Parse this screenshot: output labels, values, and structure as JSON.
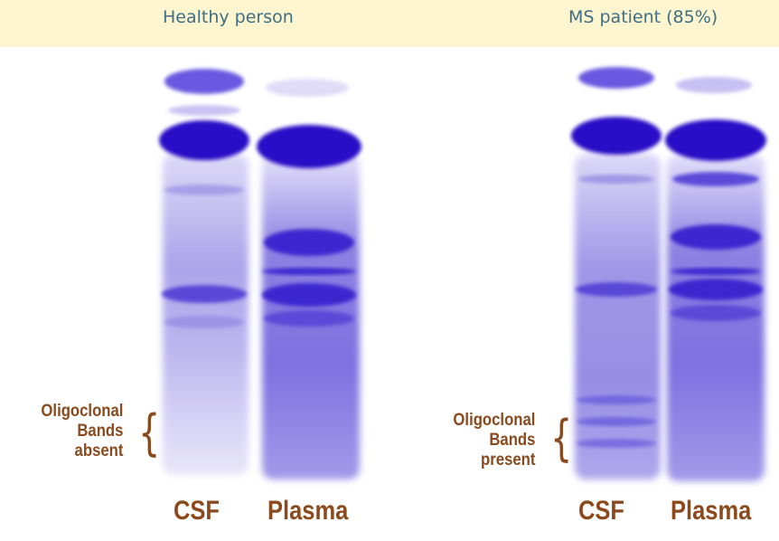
{
  "panels": [
    {
      "title": "Healthy person",
      "oligoclonal_label": [
        "Oligoclonal",
        "Bands",
        "absent"
      ],
      "lanes": [
        "CSF",
        "Plasma"
      ]
    },
    {
      "title": "MS patient (85%)",
      "oligoclonal_label": [
        "Oligoclonal",
        "Bands",
        "present"
      ],
      "lanes": [
        "CSF",
        "Plasma"
      ]
    }
  ],
  "colors": {
    "header_background": "#fcf5cf",
    "title_text": "#3e6f84",
    "annotation_text": "#8a4a1e",
    "stain_dark": "#2c10c8",
    "stain_light": "#d4cff4"
  }
}
